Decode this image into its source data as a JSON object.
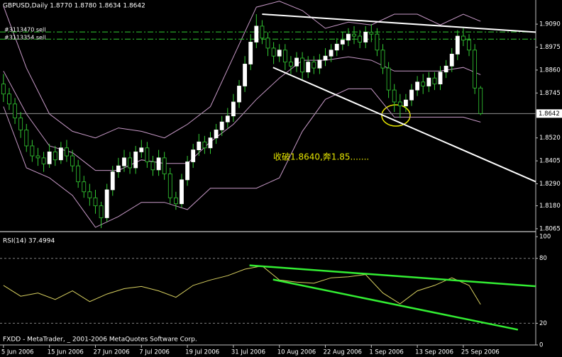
{
  "chart_data": [
    {
      "type": "candlestick",
      "title": "GBPUSD,Daily 1.8770 1.8780 1.8634 1.8642",
      "open": [
        1.879,
        1.874,
        1.869,
        1.862,
        1.856,
        1.848,
        1.843,
        1.842,
        1.839,
        1.845,
        1.841,
        1.847,
        1.843,
        1.838,
        1.83,
        1.825,
        1.822,
        1.818,
        1.812,
        1.826,
        1.835,
        1.838,
        1.842,
        1.837,
        1.845,
        1.847,
        1.84,
        1.836,
        1.842,
        1.834,
        1.822,
        1.819,
        1.831,
        1.84,
        1.846,
        1.85,
        1.847,
        1.852,
        1.856,
        1.86,
        1.863,
        1.87,
        1.878,
        1.889,
        1.9,
        1.908,
        1.902,
        1.897,
        1.893,
        1.896,
        1.89,
        1.888,
        1.892,
        1.885,
        1.89,
        1.887,
        1.891,
        1.893,
        1.896,
        1.899,
        1.901,
        1.904,
        1.903,
        1.9,
        1.905,
        1.904,
        1.896,
        1.887,
        1.876,
        1.87,
        1.868,
        1.871,
        1.876,
        1.88,
        1.878,
        1.882,
        1.879,
        1.885,
        1.888,
        1.894,
        1.903,
        1.901,
        1.896,
        1.877
      ],
      "high": [
        1.884,
        1.877,
        1.872,
        1.865,
        1.859,
        1.851,
        1.847,
        1.845,
        1.849,
        1.848,
        1.85,
        1.851,
        1.846,
        1.841,
        1.833,
        1.829,
        1.826,
        1.82,
        1.829,
        1.838,
        1.842,
        1.846,
        1.845,
        1.848,
        1.851,
        1.85,
        1.843,
        1.846,
        1.845,
        1.837,
        1.825,
        1.834,
        1.843,
        1.849,
        1.854,
        1.853,
        1.855,
        1.859,
        1.863,
        1.867,
        1.874,
        1.881,
        1.893,
        1.904,
        1.914,
        1.911,
        1.905,
        1.9,
        1.899,
        1.899,
        1.893,
        1.895,
        1.895,
        1.893,
        1.893,
        1.894,
        1.897,
        1.899,
        1.902,
        1.905,
        1.907,
        1.908,
        1.906,
        1.908,
        1.909,
        1.907,
        1.899,
        1.89,
        1.879,
        1.874,
        1.874,
        1.879,
        1.883,
        1.884,
        1.885,
        1.885,
        1.888,
        1.891,
        1.897,
        1.906,
        1.907,
        1.904,
        1.899,
        1.878
      ],
      "low": [
        1.87,
        1.866,
        1.859,
        1.852,
        1.845,
        1.84,
        1.838,
        1.835,
        1.837,
        1.838,
        1.839,
        1.84,
        1.835,
        1.827,
        1.822,
        1.818,
        1.814,
        1.8068,
        1.81,
        1.823,
        1.832,
        1.835,
        1.834,
        1.834,
        1.842,
        1.837,
        1.833,
        1.833,
        1.831,
        1.819,
        1.816,
        1.817,
        1.828,
        1.837,
        1.843,
        1.844,
        1.844,
        1.849,
        1.853,
        1.857,
        1.86,
        1.867,
        1.875,
        1.886,
        1.897,
        1.899,
        1.893,
        1.889,
        1.89,
        1.886,
        1.884,
        1.885,
        1.881,
        1.882,
        1.884,
        1.884,
        1.888,
        1.89,
        1.893,
        1.896,
        1.898,
        1.899,
        1.897,
        1.897,
        1.9,
        1.893,
        1.884,
        1.872,
        1.865,
        1.862,
        1.865,
        1.868,
        1.873,
        1.874,
        1.875,
        1.876,
        1.876,
        1.882,
        1.885,
        1.891,
        1.898,
        1.893,
        1.874,
        1.8634
      ],
      "close": [
        1.874,
        1.869,
        1.862,
        1.856,
        1.848,
        1.843,
        1.842,
        1.839,
        1.845,
        1.841,
        1.847,
        1.843,
        1.838,
        1.83,
        1.825,
        1.822,
        1.818,
        1.812,
        1.826,
        1.835,
        1.838,
        1.842,
        1.837,
        1.845,
        1.847,
        1.84,
        1.836,
        1.842,
        1.834,
        1.822,
        1.819,
        1.831,
        1.84,
        1.846,
        1.85,
        1.847,
        1.852,
        1.856,
        1.86,
        1.863,
        1.87,
        1.878,
        1.889,
        1.9,
        1.908,
        1.902,
        1.897,
        1.893,
        1.896,
        1.89,
        1.888,
        1.892,
        1.885,
        1.89,
        1.887,
        1.891,
        1.893,
        1.896,
        1.899,
        1.901,
        1.904,
        1.903,
        1.9,
        1.905,
        1.904,
        1.896,
        1.887,
        1.876,
        1.87,
        1.868,
        1.871,
        1.876,
        1.88,
        1.878,
        1.882,
        1.879,
        1.885,
        1.888,
        1.894,
        1.903,
        1.901,
        1.896,
        1.877,
        1.8642
      ],
      "xlim": [
        -0.6,
        92.6
      ],
      "ylim": [
        1.8054,
        1.9211
      ],
      "yticks": [
        {
          "value": 1.909,
          "label": "1.9090"
        },
        1.8975,
        {
          "value": 1.886,
          "label": "1.8860"
        },
        1.8745,
        {
          "value": 1.852,
          "label": "1.8520"
        },
        1.8405,
        {
          "value": 1.829,
          "label": "1.8290"
        },
        {
          "value": 1.818,
          "label": "1.8180"
        },
        1.8065
      ],
      "xticks": [
        {
          "value": 0,
          "label": "5 Jun 2006"
        },
        {
          "value": 8,
          "label": "15 Jun 2006"
        },
        {
          "value": 16,
          "label": "27 Jun 2006"
        },
        {
          "value": 24,
          "label": "7 Jul 2006"
        },
        {
          "value": 32,
          "label": "19 Jul 2006"
        },
        {
          "value": 40,
          "label": "31 Jul 2006"
        },
        {
          "value": 48,
          "label": "10 Aug 2006"
        },
        {
          "value": 56,
          "label": "22 Aug 2006"
        },
        {
          "value": 64,
          "label": "1 Sep 2006"
        },
        {
          "value": 72,
          "label": "13 Sep 2006"
        },
        {
          "value": 80,
          "label": "25 Sep 2006"
        }
      ],
      "up_color": "#ffffff",
      "down_color": "#000000",
      "wick_color": "#33cc33",
      "bands": {
        "color": "#c89ac8",
        "x": [
          0,
          4,
          8,
          12,
          16,
          20,
          24,
          28,
          32,
          36,
          40,
          44,
          48,
          52,
          56,
          60,
          64,
          68,
          72,
          76,
          80,
          83
        ],
        "upper": [
          1.918,
          1.887,
          1.864,
          1.8553,
          1.852,
          1.857,
          1.8553,
          1.852,
          1.8588,
          1.8677,
          1.8926,
          1.9175,
          1.9205,
          1.9158,
          1.9069,
          1.91,
          1.9086,
          1.914,
          1.914,
          1.9086,
          1.914,
          1.9104
        ],
        "middle": [
          1.8855,
          1.864,
          1.848,
          1.8446,
          1.8357,
          1.8357,
          1.841,
          1.8392,
          1.8392,
          1.85,
          1.8588,
          1.8713,
          1.882,
          1.8909,
          1.8909,
          1.8926,
          1.8909,
          1.8855,
          1.8855,
          1.8855,
          1.8873,
          1.8837
        ],
        "lower": [
          1.8677,
          1.837,
          1.832,
          1.8232,
          1.8072,
          1.8126,
          1.8197,
          1.8197,
          1.8161,
          1.8268,
          1.8268,
          1.8268,
          1.832,
          1.8553,
          1.8713,
          1.8766,
          1.8766,
          1.8624,
          1.8624,
          1.8624,
          1.8624,
          1.8599
        ]
      },
      "trendlines": [
        {
          "x": [
            45,
            95.7
          ],
          "y": [
            1.914,
            1.9044
          ]
        },
        {
          "x": [
            46.9,
            93.2
          ],
          "y": [
            1.8873,
            1.8293
          ]
        }
      ],
      "trendline_color": "#ffffff",
      "orders": [
        {
          "label": "#3113470 sell",
          "value": 1.9051
        },
        {
          "label": "#3113354 sell",
          "value": 1.9015
        }
      ],
      "order_color": "#33cc33",
      "annotation": "收破1.8640,奔1.85.......",
      "annotation_color": "#e6e600"
    },
    {
      "type": "line",
      "title": "RSI(14) 37.4994",
      "x": [
        0,
        3,
        6,
        9,
        12,
        15,
        18,
        21,
        24,
        27,
        30,
        33,
        36,
        39,
        42,
        45,
        48,
        51,
        54,
        57,
        60,
        63,
        66,
        69,
        72,
        75,
        78,
        81,
        83
      ],
      "values": [
        55,
        45,
        48,
        42,
        50,
        40,
        47,
        52,
        54,
        50,
        44,
        55,
        60,
        64,
        70,
        73,
        60,
        58,
        57,
        62,
        63,
        65,
        48,
        38,
        50,
        55,
        62,
        55,
        37.4994
      ],
      "color": "#d8d060",
      "xlim": [
        -0.6,
        92.6
      ],
      "ylim": [
        0,
        104
      ],
      "yticks": [
        100,
        80,
        20,
        0
      ],
      "levels": [
        80,
        20
      ],
      "trendlines": [
        {
          "x": [
            42.8,
            93.2
          ],
          "y": [
            73.5,
            54
          ]
        },
        {
          "x": [
            46.9,
            89.5
          ],
          "y": [
            60.4,
            14.1
          ]
        }
      ],
      "trendline_color": "#33ee33"
    }
  ],
  "footer": "FXDD - MetaTrader, _ 2001-2006 MetaQuotes Software Corp."
}
